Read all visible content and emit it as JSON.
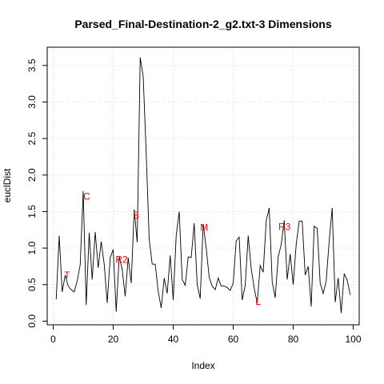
{
  "chart_data": {
    "type": "line",
    "title": "Parsed_Final-Destination-2_g2.txt-3 Dimensions",
    "xlabel": "Index",
    "ylabel": "euclDist",
    "xlim": [
      -2.0,
      102.0
    ],
    "ylim": [
      -0.05,
      3.75
    ],
    "x_ticks": [
      0,
      20,
      40,
      60,
      80,
      100
    ],
    "y_ticks": [
      0.0,
      0.5,
      1.0,
      1.5,
      2.0,
      2.5,
      3.0,
      3.5
    ],
    "grid": true,
    "line_color": "#000000",
    "annotation_color": "#ff0000",
    "x": [
      1,
      2,
      3,
      4,
      5,
      6,
      7,
      8,
      9,
      10,
      11,
      12,
      13,
      14,
      15,
      16,
      17,
      18,
      19,
      20,
      21,
      22,
      23,
      24,
      25,
      26,
      27,
      28,
      29,
      30,
      31,
      32,
      33,
      34,
      35,
      36,
      37,
      38,
      39,
      40,
      41,
      42,
      43,
      44,
      45,
      46,
      47,
      48,
      49,
      50,
      51,
      52,
      53,
      54,
      55,
      56,
      57,
      58,
      59,
      60,
      61,
      62,
      63,
      64,
      65,
      66,
      67,
      68,
      69,
      70,
      71,
      72,
      73,
      74,
      75,
      76,
      77,
      78,
      79,
      80,
      81,
      82,
      83,
      84,
      85,
      86,
      87,
      88,
      89,
      90,
      91,
      92,
      93,
      94,
      95,
      96,
      97,
      98,
      99
    ],
    "values": [
      0.3,
      1.17,
      0.4,
      0.63,
      0.48,
      0.43,
      0.4,
      0.55,
      0.77,
      1.78,
      0.22,
      1.21,
      0.57,
      1.22,
      0.73,
      1.09,
      0.78,
      0.25,
      0.87,
      0.98,
      0.13,
      0.88,
      0.71,
      0.34,
      0.87,
      0.52,
      1.53,
      1.08,
      3.61,
      3.35,
      2.3,
      1.12,
      0.78,
      0.78,
      0.41,
      0.18,
      0.59,
      0.38,
      0.9,
      0.29,
      1.17,
      1.5,
      0.57,
      0.49,
      0.88,
      0.87,
      1.34,
      0.5,
      0.31,
      1.33,
      1.0,
      0.6,
      0.48,
      0.43,
      0.59,
      0.48,
      0.48,
      0.46,
      0.42,
      0.52,
      1.1,
      1.15,
      0.29,
      0.49,
      1.17,
      0.72,
      0.45,
      0.25,
      0.76,
      0.67,
      1.37,
      1.55,
      0.54,
      0.32,
      0.88,
      1.05,
      1.38,
      0.57,
      0.92,
      0.5,
      1.05,
      1.37,
      1.37,
      0.63,
      0.75,
      0.2,
      1.3,
      1.27,
      0.52,
      0.38,
      0.55,
      1.1,
      1.55,
      0.26,
      0.59,
      0.11,
      0.65,
      0.56,
      0.36
    ],
    "annotations": [
      {
        "label": "T",
        "x": 4.6,
        "y": 0.63
      },
      {
        "label": "C",
        "x": 11.2,
        "y": 1.71
      },
      {
        "label": "R2",
        "x": 22.8,
        "y": 0.84
      },
      {
        "label": "B",
        "x": 27.6,
        "y": 1.45
      },
      {
        "label": "M",
        "x": 50.3,
        "y": 1.28
      },
      {
        "label": "L",
        "x": 68.3,
        "y": 0.27
      },
      {
        "label": "R3",
        "x": 77.1,
        "y": 1.29
      }
    ]
  }
}
